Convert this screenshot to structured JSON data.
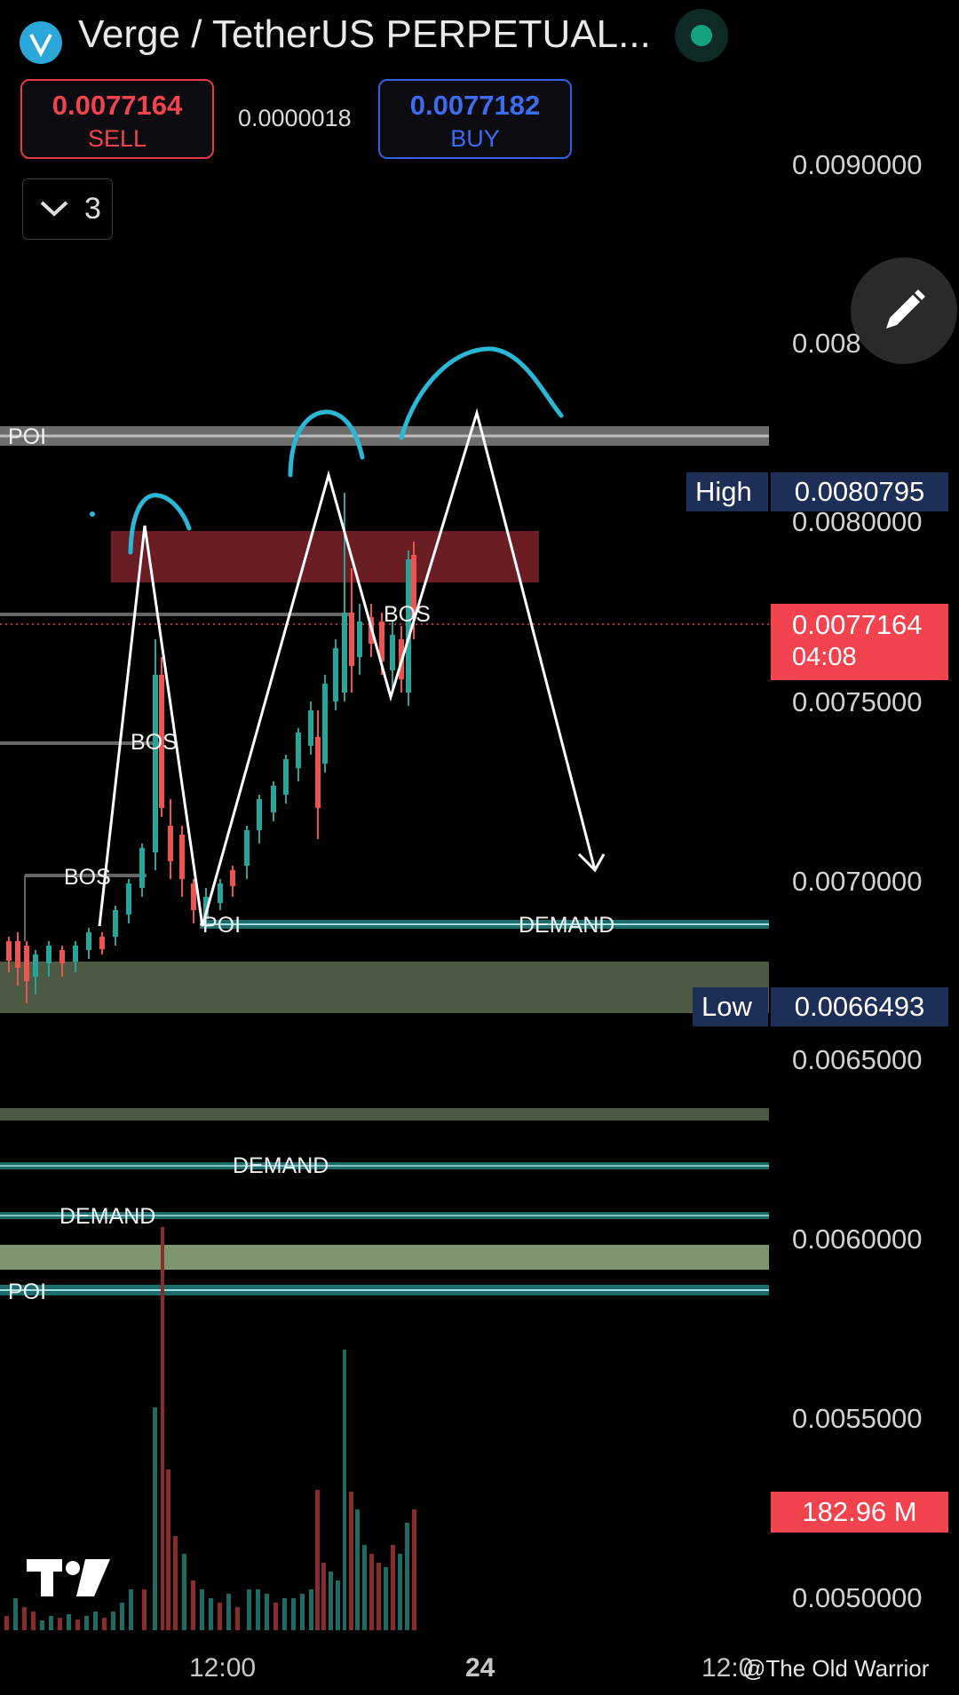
{
  "header": {
    "title": "Verge / TetherUS PERPETUAL..."
  },
  "trade": {
    "sell_price": "0.0077164",
    "sell_label": "SELL",
    "spread": "0.0000018",
    "buy_price": "0.0077182",
    "buy_label": "BUY"
  },
  "collapse": {
    "count": "3"
  },
  "price_axis": {
    "labels": [
      "0.0090000",
      "0.008",
      "0.0080000",
      "0.0075000",
      "0.0070000",
      "0.0065000",
      "0.0060000",
      "0.0055000",
      "0.0050000"
    ]
  },
  "markers": {
    "high_label": "High",
    "high_value": "0.0080795",
    "low_label": "Low",
    "low_value": "0.0066493",
    "last_price": "0.0077164",
    "countdown": "04:08",
    "volume": "182.96 M"
  },
  "zones": {
    "poi_top": "POI",
    "bos_1": "BOS",
    "bos_2": "BOS",
    "bos_3": "BOS",
    "poi_mid": "POI",
    "demand_1": "DEMAND",
    "demand_2": "DEMAND",
    "demand_3": "DEMAND",
    "poi_bottom": "POI"
  },
  "time_axis": {
    "t1": "12:00",
    "t2": "24",
    "t3": "12:0"
  },
  "watermark": "@The Old Warrior",
  "colors": {
    "up": "#26a69a",
    "down": "#ef5350",
    "sell": "#f2434f",
    "buy": "#3c6cf2",
    "supply_zone": "#6b1d24",
    "demand_zone": "#4c5a44",
    "annotation": "#2bb8d6"
  }
}
